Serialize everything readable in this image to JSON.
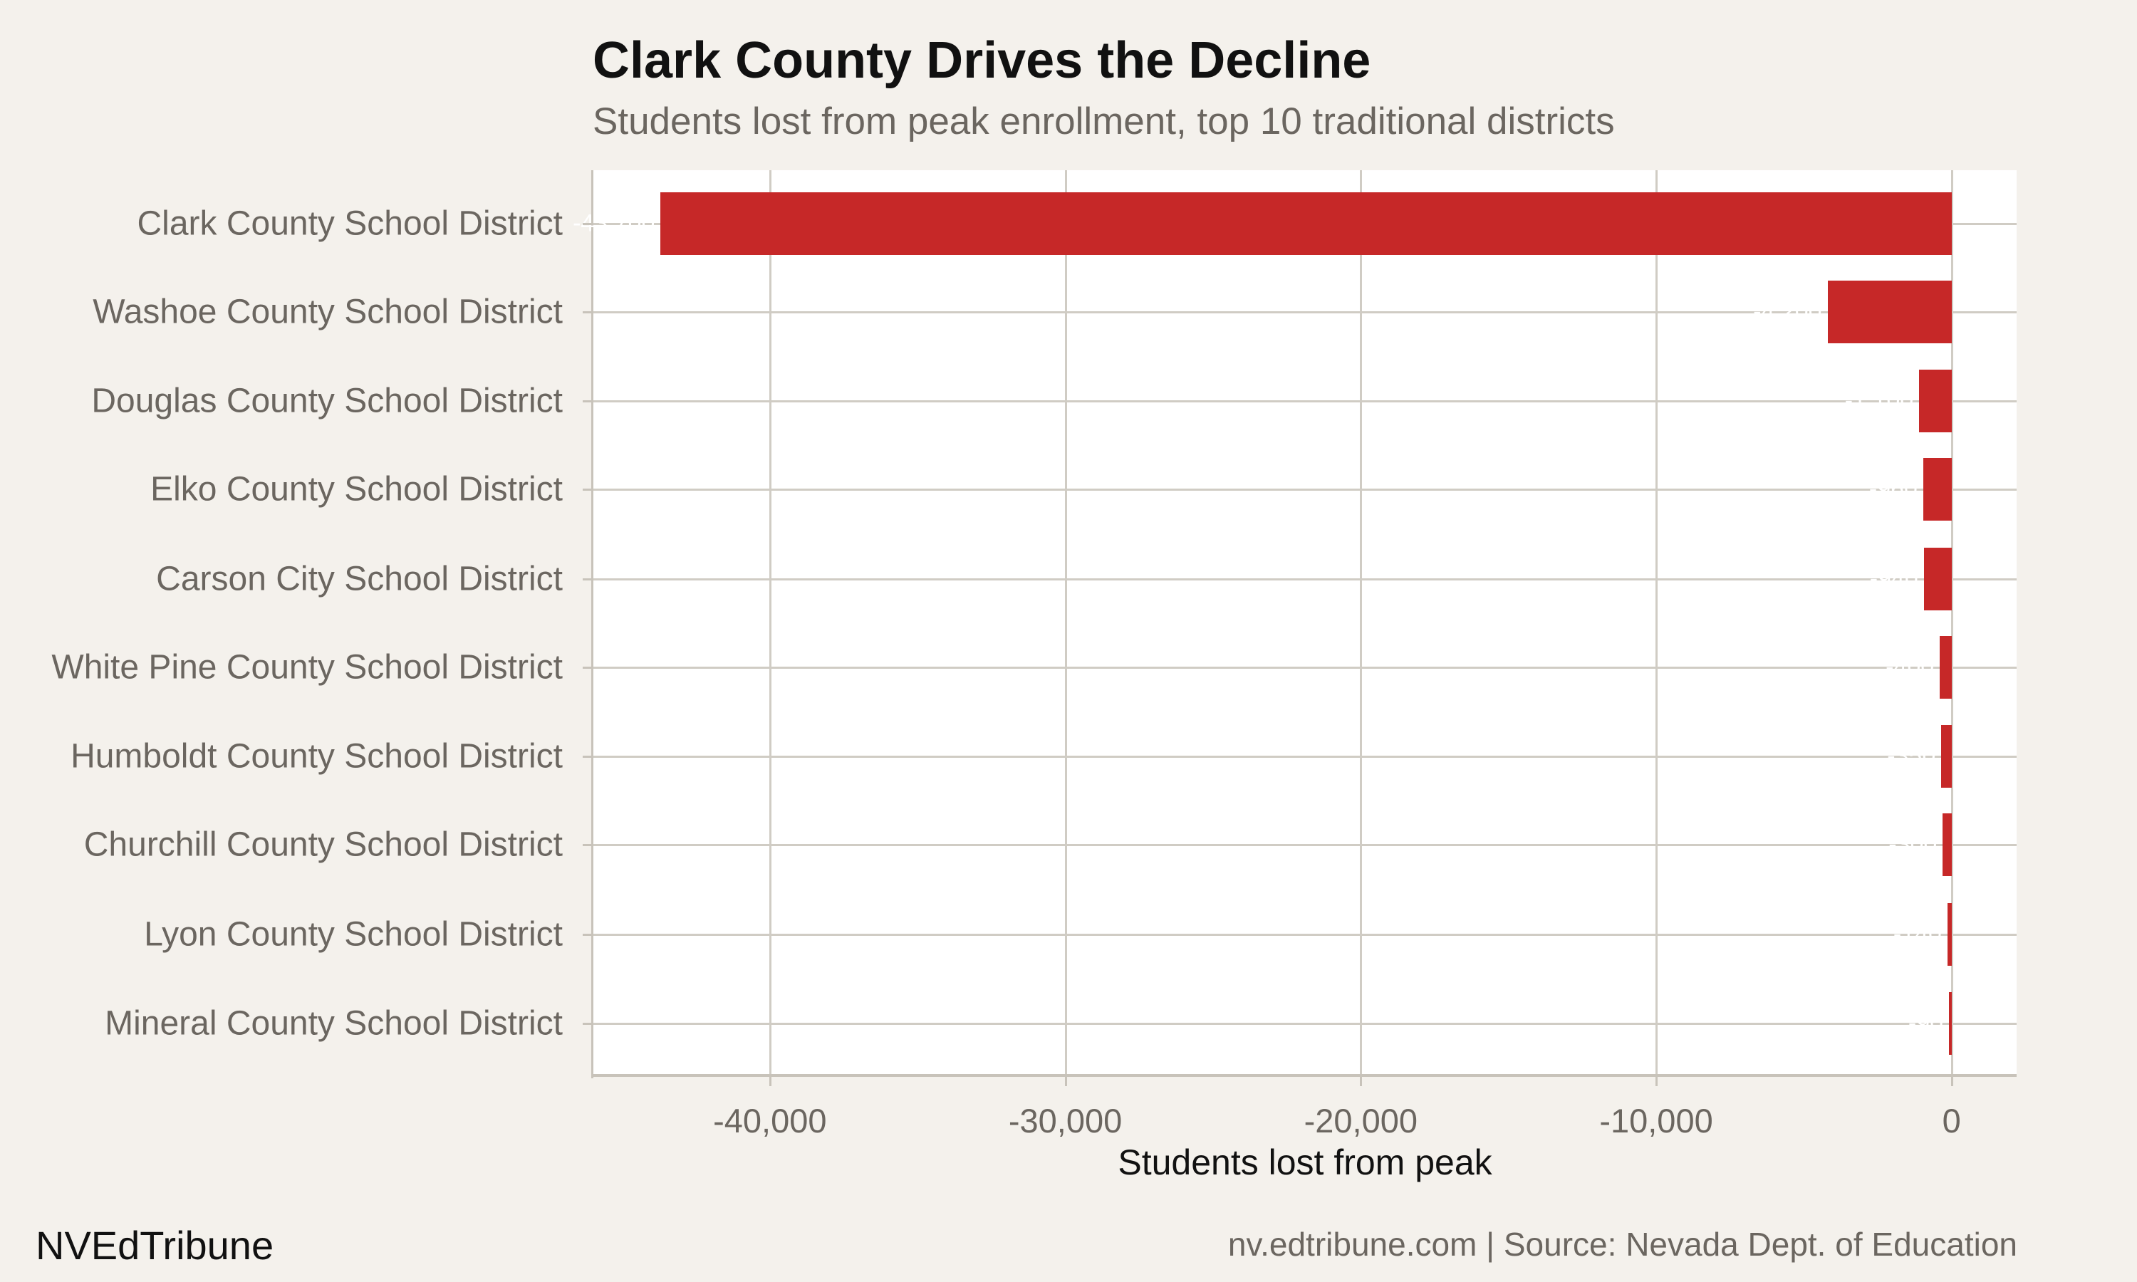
{
  "header": {
    "title": "Clark County Drives the Decline",
    "subtitle": "Students lost from peak enrollment, top 10 traditional districts"
  },
  "footer": {
    "brand": "NVEdTribune",
    "source": "nv.edtribune.com | Source: Nevada Dept. of Education"
  },
  "colors": {
    "bar": "#c62828",
    "background": "#f4f1ec",
    "panel": "#ffffff",
    "grid": "#d0ccc4",
    "label": "#6b6660"
  },
  "chart_data": {
    "type": "bar",
    "orientation": "horizontal",
    "title": "Clark County Drives the Decline",
    "subtitle": "Students lost from peak enrollment, top 10 traditional districts",
    "xlabel": "Students lost from peak",
    "ylabel": "",
    "xlim": [
      -46000,
      2200
    ],
    "x_ticks": [
      -40000,
      -30000,
      -20000,
      -10000,
      0
    ],
    "x_tick_labels": [
      "-40,000",
      "-30,000",
      "-20,000",
      "-10,000",
      "0"
    ],
    "grid": true,
    "legend": null,
    "categories": [
      "Clark County School District",
      "Washoe County School District",
      "Douglas County School District",
      "Elko County School District",
      "Carson City School District",
      "White Pine County School District",
      "Humboldt County School District",
      "Churchill County School District",
      "Lyon County School District",
      "Mineral County School District"
    ],
    "values": [
      -43700,
      -4200,
      -1100,
      -960,
      -940,
      -400,
      -350,
      -300,
      -140,
      -90
    ],
    "value_labels": [
      "-43,700",
      "-4,200",
      "-1,100",
      "-960",
      "-940",
      "-400",
      "-350",
      "-300",
      "-140",
      "-90"
    ]
  }
}
